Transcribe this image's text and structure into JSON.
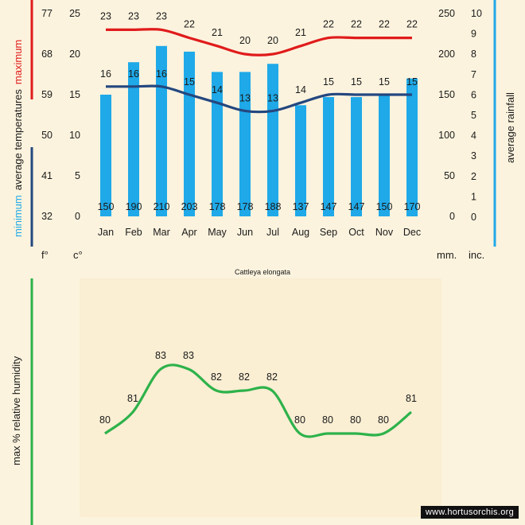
{
  "chart_data": [
    {
      "type": "bar",
      "title": "Cattleya elongata",
      "categories": [
        "Jan",
        "Feb",
        "Mar",
        "Apr",
        "May",
        "Jun",
        "Jul",
        "Aug",
        "Sep",
        "Oct",
        "Nov",
        "Dec"
      ],
      "series": [
        {
          "name": "average rainfall (mm)",
          "values": [
            150,
            190,
            210,
            203,
            178,
            178,
            188,
            137,
            147,
            147,
            150,
            170
          ]
        },
        {
          "name": "maximum average temperature (°C)",
          "type": "line",
          "values": [
            23,
            23,
            23,
            22,
            21,
            20,
            20,
            21,
            22,
            22,
            22,
            22
          ]
        },
        {
          "name": "minimum average temperature (°C)",
          "type": "line",
          "values": [
            16,
            16,
            16,
            15,
            14,
            13,
            13,
            14,
            15,
            15,
            15,
            15
          ]
        }
      ],
      "axes": {
        "fahrenheit": {
          "ticks": [
            "77",
            "68",
            "59",
            "50",
            "41",
            "32"
          ],
          "unit": "f°"
        },
        "celsius": {
          "ticks": [
            "25",
            "20",
            "15",
            "10",
            "5",
            "0"
          ],
          "unit": "c°",
          "ylim": [
            0,
            25
          ]
        },
        "millimetres": {
          "ticks": [
            "250",
            "200",
            "150",
            "100",
            "50",
            "0"
          ],
          "unit": "mm.",
          "ylim": [
            0,
            250
          ]
        },
        "inches": {
          "ticks": [
            "10",
            "9",
            "8",
            "7",
            "6",
            "5",
            "4",
            "3",
            "2",
            "1",
            "0"
          ],
          "unit": "inc.",
          "ylim": [
            0,
            10
          ]
        }
      },
      "left_label": {
        "maximum": "maximum",
        "average": "average  temperatures",
        "minimum": "minimum"
      },
      "right_label": "average rainfall",
      "colors": {
        "bars": "#1fa9e8",
        "max_line": "#e01b1b",
        "min_line": "#24477f",
        "rain_axis": "#1fa9e8"
      }
    },
    {
      "type": "line",
      "categories": [
        "Jan",
        "Feb",
        "Mar",
        "Apr",
        "May",
        "Jun",
        "Jul",
        "Aug",
        "Sep",
        "Oct",
        "Nov",
        "Dec"
      ],
      "series": [
        {
          "name": "max % relative humidity",
          "values": [
            80,
            81,
            83,
            83,
            82,
            82,
            82,
            80,
            80,
            80,
            80,
            81
          ]
        }
      ],
      "ylabel": "max %  relative humidity",
      "colors": {
        "line": "#2db24a"
      }
    }
  ],
  "watermark": "www.hortusorchis.org"
}
